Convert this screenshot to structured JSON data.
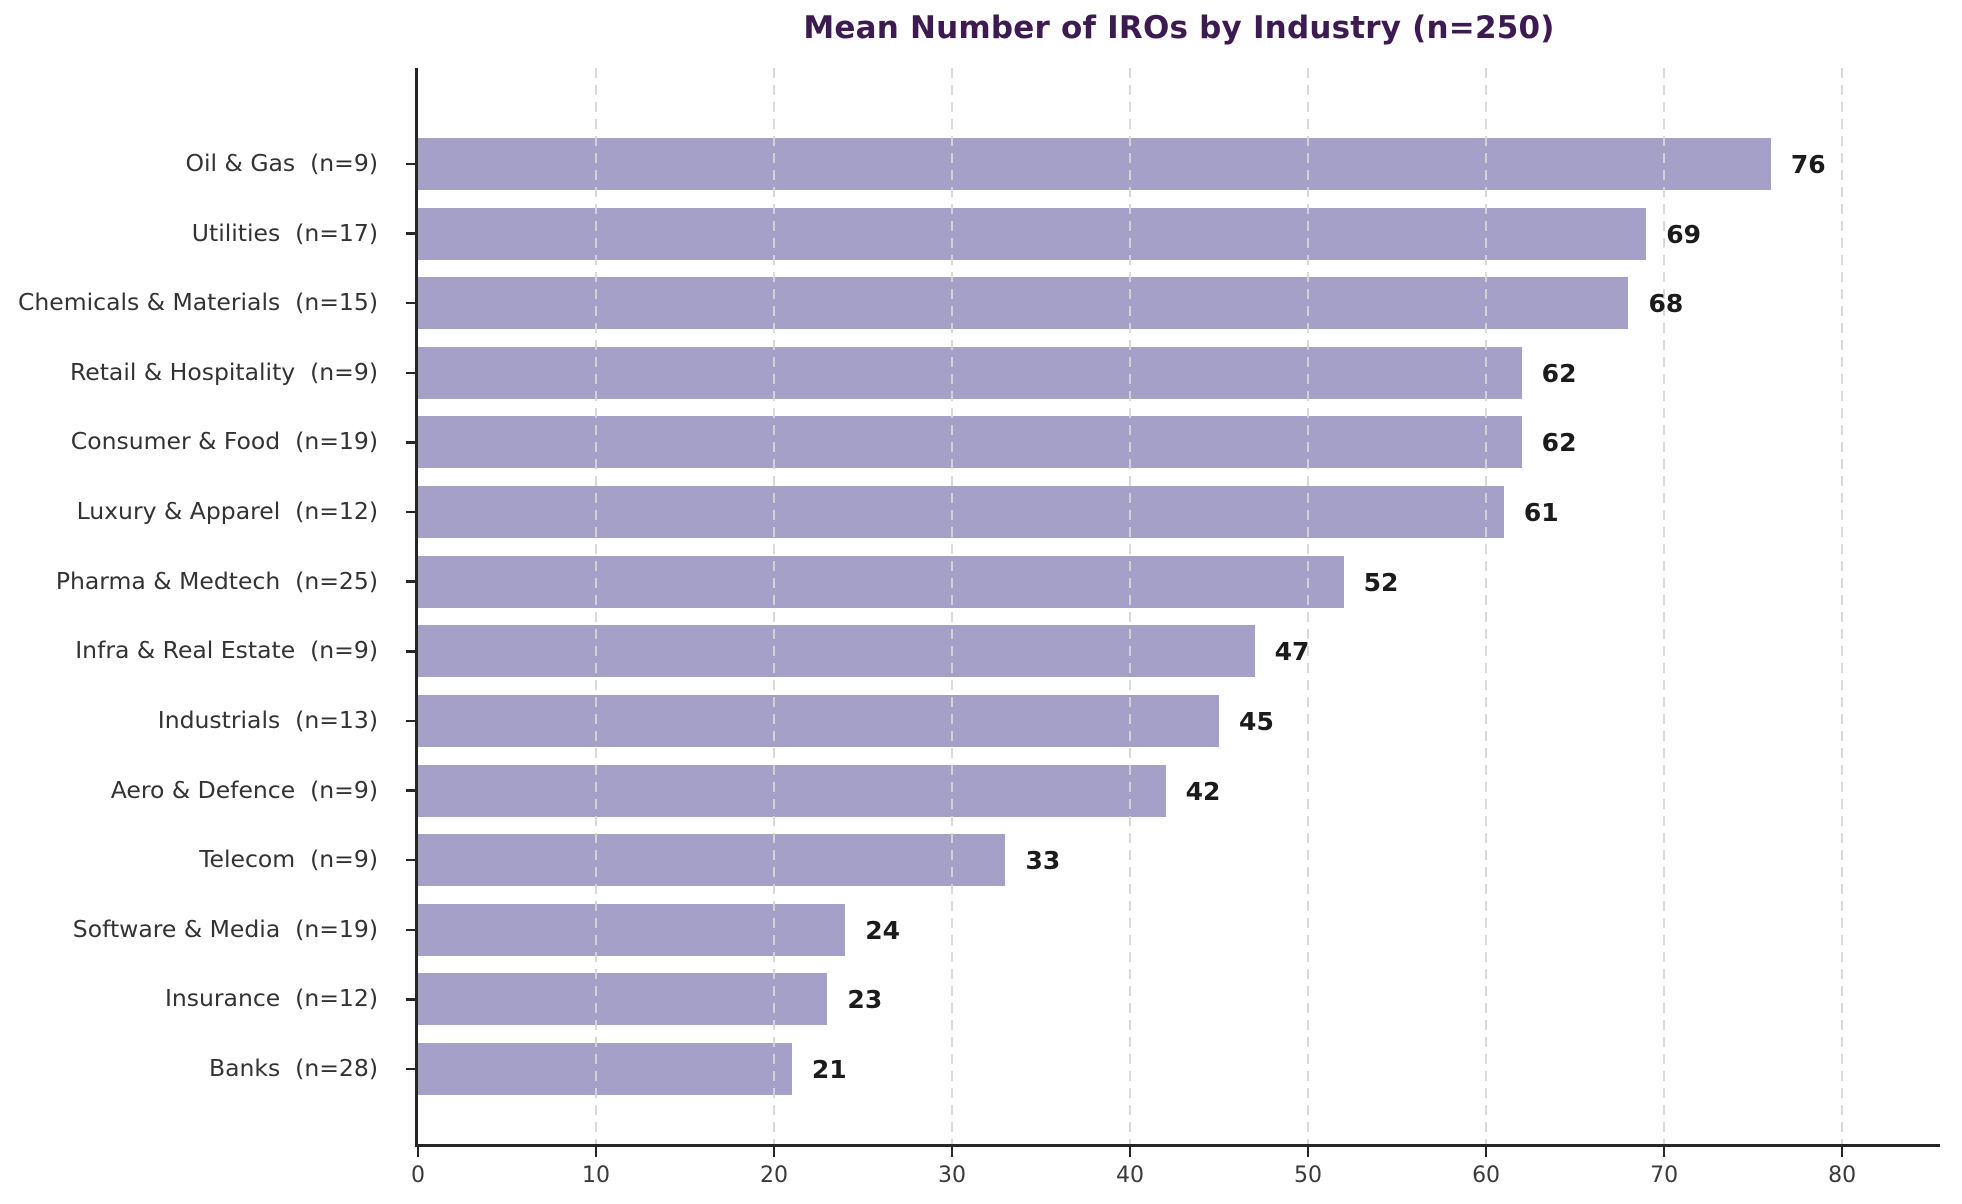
{
  "title": "Mean Number of IROs by Industry (n=250)",
  "colors": {
    "title": "#3e1a53",
    "bar_fill": "#a5a0c8",
    "axis_spine": "#262626",
    "gridline": "#d6d6d6",
    "category_label": "#333333",
    "value_label": "#1b1b1b",
    "tick_label": "#3a3a3a",
    "background": "#ffffff"
  },
  "chart_data": {
    "type": "bar",
    "orientation": "horizontal",
    "title": "Mean Number of IROs by Industry (n=250)",
    "xlabel": "",
    "ylabel": "",
    "xlim": [
      0,
      85.5
    ],
    "xticks": [
      0,
      10,
      20,
      30,
      40,
      50,
      60,
      70,
      80
    ],
    "grid": "vertical-dashed",
    "value_labels_shown": true,
    "bar_color": "#a5a0c8",
    "categories": [
      "Oil & Gas  (n=9)",
      "Utilities  (n=17)",
      "Chemicals & Materials  (n=15)",
      "Retail & Hospitality  (n=9)",
      "Consumer & Food  (n=19)",
      "Luxury & Apparel  (n=12)",
      "Pharma & Medtech  (n=25)",
      "Infra & Real Estate  (n=9)",
      "Industrials  (n=13)",
      "Aero & Defence  (n=9)",
      "Telecom  (n=9)",
      "Software & Media  (n=19)",
      "Insurance  (n=12)",
      "Banks  (n=28)"
    ],
    "values": [
      76,
      69,
      68,
      62,
      62,
      61,
      52,
      47,
      45,
      42,
      33,
      24,
      23,
      21
    ],
    "industries": [
      {
        "name": "Oil & Gas",
        "n": 9,
        "value": 76
      },
      {
        "name": "Utilities",
        "n": 17,
        "value": 69
      },
      {
        "name": "Chemicals & Materials",
        "n": 15,
        "value": 68
      },
      {
        "name": "Retail & Hospitality",
        "n": 9,
        "value": 62
      },
      {
        "name": "Consumer & Food",
        "n": 19,
        "value": 62
      },
      {
        "name": "Luxury & Apparel",
        "n": 12,
        "value": 61
      },
      {
        "name": "Pharma & Medtech",
        "n": 25,
        "value": 52
      },
      {
        "name": "Infra & Real Estate",
        "n": 9,
        "value": 47
      },
      {
        "name": "Industrials",
        "n": 13,
        "value": 45
      },
      {
        "name": "Aero & Defence",
        "n": 9,
        "value": 42
      },
      {
        "name": "Telecom",
        "n": 9,
        "value": 33
      },
      {
        "name": "Software & Media",
        "n": 19,
        "value": 24
      },
      {
        "name": "Insurance",
        "n": 12,
        "value": 23
      },
      {
        "name": "Banks",
        "n": 28,
        "value": 21
      }
    ]
  }
}
